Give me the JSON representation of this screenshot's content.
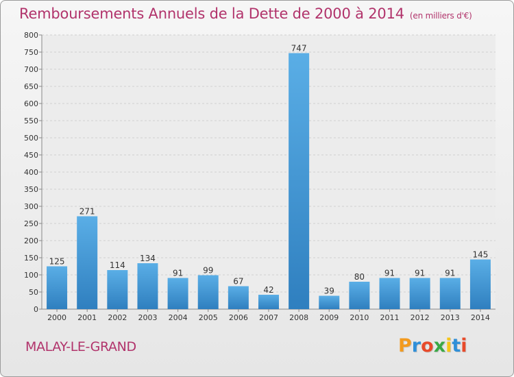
{
  "header": {
    "title": "Remboursements Annuels de la Dette de 2000 à 2014",
    "unit": "(en milliers d'€)"
  },
  "footer": {
    "city": "MALAY-LE-GRAND",
    "logo_letters": [
      "P",
      "r",
      "o",
      "x",
      "i",
      "t",
      "i"
    ],
    "logo_colors": [
      "#f39a1e",
      "#2f8fd8",
      "#e84a2a",
      "#3aa845",
      "#f5c518",
      "#2f8fd8",
      "#e84a2a"
    ]
  },
  "chart_data": {
    "type": "bar",
    "categories": [
      "2000",
      "2001",
      "2002",
      "2003",
      "2004",
      "2005",
      "2006",
      "2007",
      "2008",
      "2009",
      "2010",
      "2011",
      "2012",
      "2013",
      "2014"
    ],
    "values": [
      125,
      271,
      114,
      134,
      91,
      99,
      67,
      42,
      747,
      39,
      80,
      91,
      91,
      91,
      145
    ],
    "ylim": [
      0,
      800
    ],
    "yticks": [
      0,
      50,
      100,
      150,
      200,
      250,
      300,
      350,
      400,
      450,
      500,
      550,
      600,
      650,
      700,
      750,
      800
    ],
    "grid": true,
    "bar_color_top": "#5aaee6",
    "bar_color_bottom": "#2f7fbf"
  }
}
